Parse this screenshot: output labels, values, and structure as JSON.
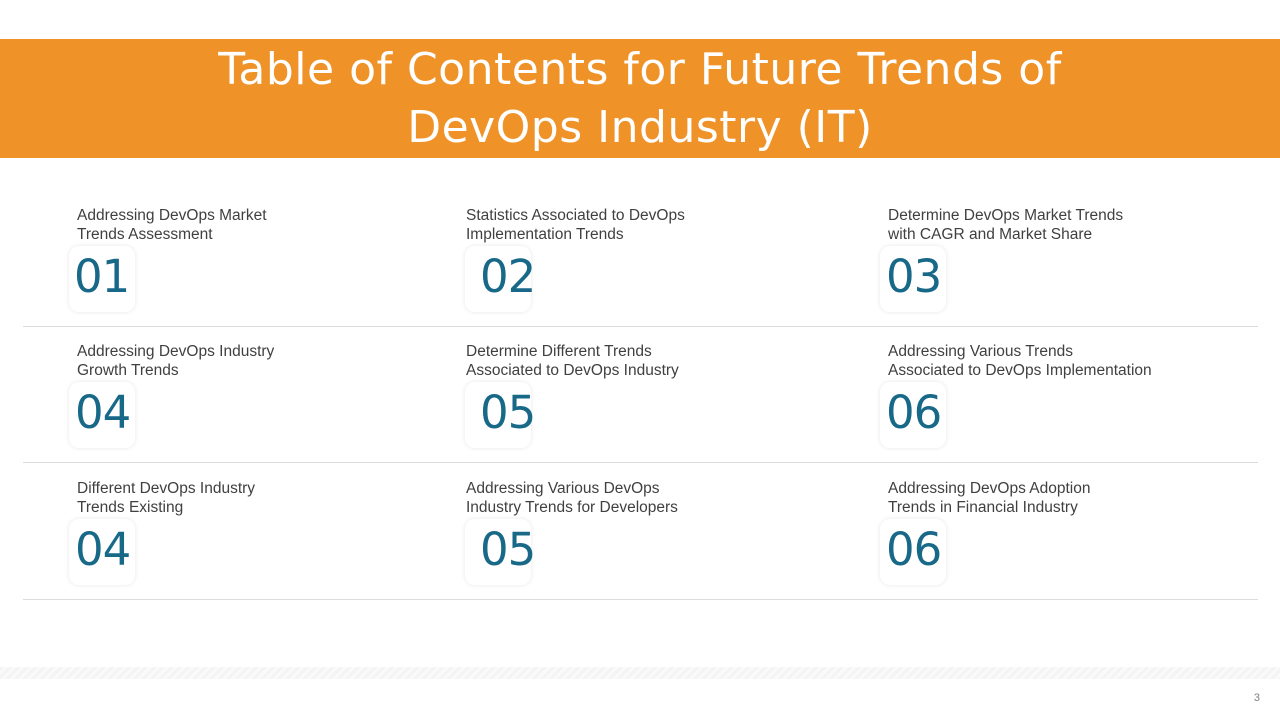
{
  "slide": {
    "title": "Table of Contents for Future Trends of DevOps Industry (IT)",
    "page_number": "3",
    "colors": {
      "title_band": "#ef9228",
      "number": "#186888",
      "label": "#404040"
    }
  },
  "rows": [
    {
      "items": [
        {
          "number": "01",
          "label_lines": [
            "Addressing DevOps Market",
            "Trends Assessment"
          ]
        },
        {
          "number": "02",
          "label_lines": [
            "Statistics Associated to DevOps",
            "Implementation  Trends"
          ]
        },
        {
          "number": "03",
          "label_lines": [
            "Determine DevOps Market Trends",
            "with CAGR and Market Share"
          ]
        }
      ]
    },
    {
      "items": [
        {
          "number": "04",
          "label_lines": [
            "Addressing DevOps Industry",
            "Growth Trends"
          ]
        },
        {
          "number": "05",
          "label_lines": [
            "Determine Different Trends",
            "Associated to DevOps Industry"
          ]
        },
        {
          "number": "06",
          "label_lines": [
            "Addressing Various Trends",
            "Associated to  DevOps Implementation"
          ]
        }
      ]
    },
    {
      "items": [
        {
          "number": "04",
          "label_lines": [
            "Different DevOps Industry",
            "Trends  Existing"
          ]
        },
        {
          "number": "05",
          "label_lines": [
            "Addressing Various DevOps",
            "Industry  Trends for Developers"
          ]
        },
        {
          "number": "06",
          "label_lines": [
            "Addressing DevOps Adoption",
            "Trends  in Financial Industry"
          ]
        }
      ]
    }
  ]
}
